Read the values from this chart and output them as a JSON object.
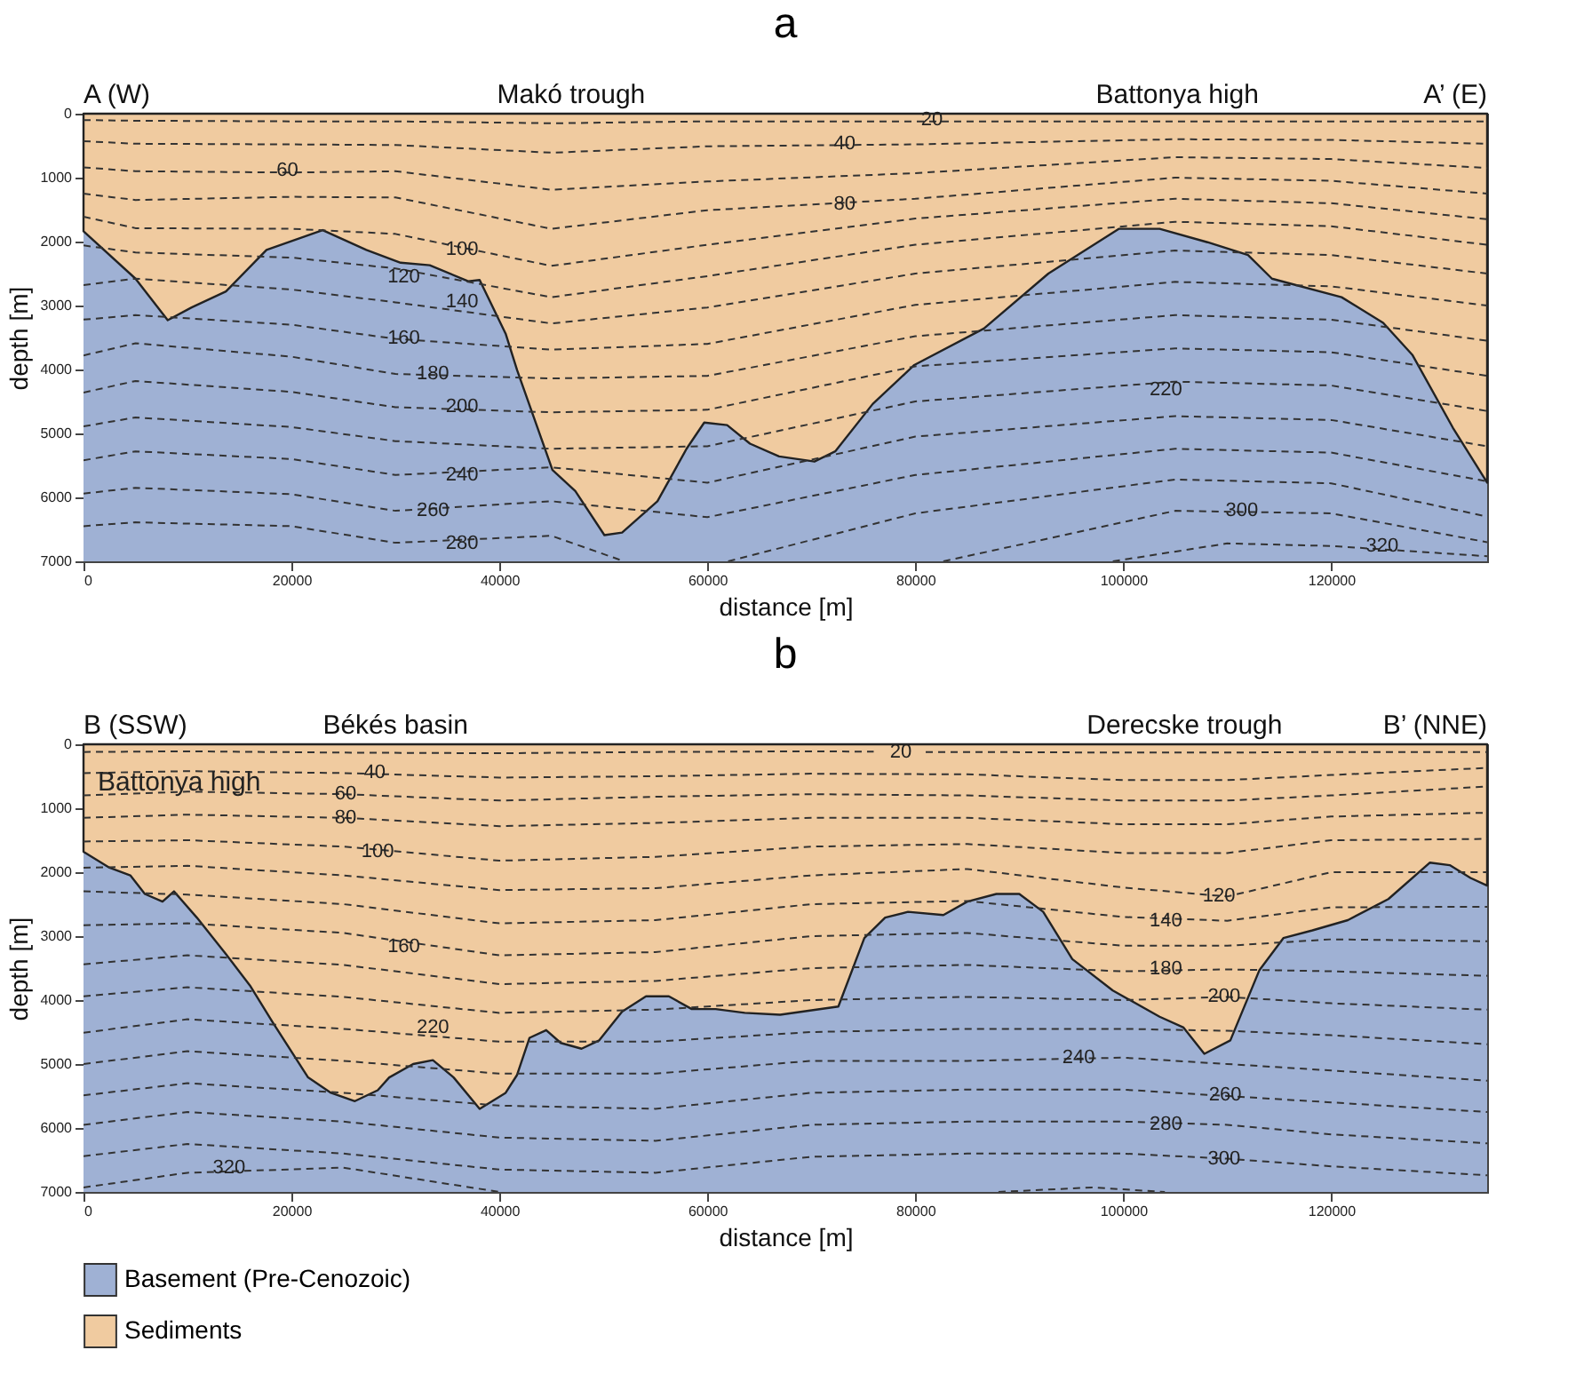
{
  "chart_data": [
    {
      "type": "area",
      "title": "a",
      "xlabel": "distance [m]",
      "ylabel": "depth [m]",
      "xlim": [
        0,
        135000
      ],
      "ylim": [
        7000,
        0
      ],
      "xticks": [
        0,
        20000,
        40000,
        60000,
        80000,
        100000,
        120000
      ],
      "yticks": [
        0,
        1000,
        2000,
        3000,
        4000,
        5000,
        6000,
        7000
      ],
      "x": [
        0,
        5000,
        20000,
        30000,
        45000,
        60000,
        80000,
        105000,
        120000,
        135000
      ],
      "series": [
        {
          "color": "#f0cba0",
          "x": [
            0,
            5000,
            8100,
            10400,
            13700,
            17600,
            23000,
            27200,
            30500,
            33300,
            37000,
            38100,
            40600,
            41700,
            45100,
            47300,
            50100,
            51800,
            55200,
            58000,
            59700,
            61900,
            64100,
            66900,
            70300,
            72300,
            75900,
            79900,
            86600,
            92800,
            99600,
            103500,
            108100,
            112000,
            114300,
            121000,
            125000,
            127800,
            131700,
            135000
          ],
          "values": [
            1840,
            2580,
            3230,
            3030,
            2780,
            2130,
            1820,
            2130,
            2330,
            2370,
            2620,
            2600,
            3440,
            4010,
            5570,
            5900,
            6590,
            6550,
            6060,
            5240,
            4830,
            4870,
            5160,
            5360,
            5440,
            5280,
            4540,
            3930,
            3360,
            2500,
            1800,
            1800,
            2010,
            2210,
            2580,
            2870,
            3270,
            3770,
            4910,
            5770
          ]
        },
        {
          "type": "line",
          "color": "#333333",
          "values": [
            100,
            110,
            120,
            120,
            150,
            120,
            120,
            120,
            120,
            120
          ]
        },
        {
          "type": "line",
          "color": "#333333",
          "values": [
            430,
            470,
            480,
            490,
            610,
            510,
            480,
            400,
            410,
            470
          ]
        },
        {
          "type": "line",
          "color": "#333333",
          "values": [
            840,
            900,
            920,
            900,
            1190,
            1060,
            930,
            680,
            710,
            850
          ]
        },
        {
          "type": "line",
          "color": "#333333",
          "values": [
            1250,
            1350,
            1300,
            1310,
            1800,
            1510,
            1330,
            1000,
            1050,
            1250
          ]
        },
        {
          "type": "line",
          "color": "#333333",
          "values": [
            1610,
            1790,
            1800,
            1880,
            2380,
            2050,
            1640,
            1330,
            1400,
            1650
          ]
        },
        {
          "type": "line",
          "color": "#333333",
          "values": [
            2060,
            2170,
            2250,
            2420,
            2870,
            2540,
            2050,
            1690,
            1760,
            2050
          ]
        },
        {
          "type": "line",
          "color": "#333333",
          "values": [
            2680,
            2580,
            2750,
            2950,
            3280,
            3030,
            2500,
            2140,
            2210,
            2500
          ]
        },
        {
          "type": "line",
          "color": "#333333",
          "values": [
            3220,
            3150,
            3300,
            3520,
            3690,
            3600,
            2990,
            2630,
            2700,
            3000
          ]
        },
        {
          "type": "line",
          "color": "#333333",
          "values": [
            3780,
            3590,
            3800,
            4070,
            4140,
            4100,
            3480,
            3150,
            3220,
            3550
          ]
        },
        {
          "type": "line",
          "color": "#333333",
          "values": [
            4360,
            4180,
            4350,
            4590,
            4670,
            4630,
            3950,
            3670,
            3730,
            4100
          ]
        },
        {
          "type": "line",
          "color": "#333333",
          "values": [
            4890,
            4750,
            4900,
            5120,
            5240,
            5200,
            4500,
            4190,
            4250,
            4650
          ]
        },
        {
          "type": "line",
          "color": "#333333",
          "values": [
            5420,
            5280,
            5400,
            5650,
            5530,
            5770,
            5050,
            4730,
            4790,
            5200
          ]
        },
        {
          "type": "line",
          "color": "#333333",
          "values": [
            5940,
            5850,
            5950,
            6210,
            6060,
            6310,
            5650,
            5240,
            5300,
            5750
          ]
        },
        {
          "type": "line",
          "color": "#333333",
          "x": [
            0,
            5000,
            20000,
            30000,
            45000,
            52000
          ],
          "values": [
            6450,
            6390,
            6450,
            6710,
            6600,
            7000
          ]
        },
        {
          "type": "line",
          "color": "#333333",
          "x": [
            62000,
            80000,
            105000,
            120000,
            135000
          ],
          "values": [
            7000,
            6250,
            5720,
            5780,
            6300
          ]
        },
        {
          "type": "line",
          "color": "#333333",
          "x": [
            82700,
            105000,
            120000,
            135000
          ],
          "values": [
            7000,
            6210,
            6250,
            6700
          ]
        },
        {
          "type": "line",
          "color": "#333333",
          "x": [
            99000,
            110000,
            120000,
            135000
          ],
          "values": [
            7000,
            6720,
            6760,
            6920
          ]
        }
      ],
      "bands": [
        {
          "axis": "y",
          "from": 0,
          "to": 7000,
          "color": "#9fb1d4"
        }
      ],
      "line_style": "dashed",
      "grid": false,
      "legend": false,
      "annotations": [
        {
          "text": "A (W)",
          "x": 0,
          "y": 0
        },
        {
          "text": "Makó trough",
          "x": 46900,
          "y": 0
        },
        {
          "text": "Battonya high",
          "x": 105200,
          "y": 0
        },
        {
          "text": "A’ (E)",
          "x": 135000,
          "y": 0
        },
        {
          "text": "20",
          "x": 81600,
          "y": 100
        },
        {
          "text": "40",
          "x": 73200,
          "y": 470
        },
        {
          "text": "60",
          "x": 19600,
          "y": 885
        },
        {
          "text": "80",
          "x": 73200,
          "y": 1410
        },
        {
          "text": "100",
          "x": 36400,
          "y": 2130
        },
        {
          "text": "120",
          "x": 30800,
          "y": 2560
        },
        {
          "text": "140",
          "x": 36400,
          "y": 2950
        },
        {
          "text": "160",
          "x": 30800,
          "y": 3520
        },
        {
          "text": "180",
          "x": 33600,
          "y": 4070
        },
        {
          "text": "200",
          "x": 36400,
          "y": 4590
        },
        {
          "text": "220",
          "x": 104100,
          "y": 4320
        },
        {
          "text": "240",
          "x": 36400,
          "y": 5650
        },
        {
          "text": "260",
          "x": 33600,
          "y": 6210
        },
        {
          "text": "280",
          "x": 36400,
          "y": 6720
        },
        {
          "text": "300",
          "x": 111400,
          "y": 6210
        },
        {
          "text": "320",
          "x": 124900,
          "y": 6760
        }
      ]
    },
    {
      "type": "area",
      "title": "b",
      "xlabel": "distance [m]",
      "ylabel": "depth [m]",
      "xlim": [
        0,
        135000
      ],
      "ylim": [
        7000,
        0
      ],
      "xticks": [
        0,
        20000,
        40000,
        60000,
        80000,
        100000,
        120000
      ],
      "yticks": [
        0,
        1000,
        2000,
        3000,
        4000,
        5000,
        6000,
        7000
      ],
      "x": [
        0,
        10000,
        25000,
        40000,
        55000,
        70000,
        85000,
        100000,
        110000,
        120000,
        135000
      ],
      "series": [
        {
          "name": "Sediments",
          "color": "#f0cba0",
          "x": [
            0,
            2500,
            4500,
            5900,
            7600,
            8700,
            10900,
            13700,
            16000,
            18200,
            21600,
            23800,
            26100,
            28300,
            29400,
            31700,
            33600,
            35600,
            38100,
            40600,
            41700,
            42900,
            44500,
            45900,
            47900,
            49600,
            51800,
            54100,
            56300,
            58500,
            60800,
            63600,
            67000,
            72600,
            75100,
            77100,
            79300,
            82700,
            85000,
            87800,
            90000,
            92300,
            95100,
            99000,
            103500,
            105800,
            107800,
            110300,
            113100,
            115400,
            118200,
            121600,
            125500,
            129500,
            131400,
            133400,
            135000
          ],
          "values": [
            1680,
            1930,
            2050,
            2340,
            2460,
            2300,
            2710,
            3280,
            3770,
            4350,
            5210,
            5450,
            5580,
            5410,
            5210,
            5000,
            4940,
            5210,
            5700,
            5450,
            5170,
            4590,
            4470,
            4670,
            4760,
            4630,
            4180,
            3940,
            3940,
            4140,
            4140,
            4200,
            4230,
            4100,
            3030,
            2710,
            2620,
            2670,
            2460,
            2340,
            2340,
            2620,
            3360,
            3850,
            4260,
            4430,
            4840,
            4630,
            3530,
            3030,
            2910,
            2750,
            2420,
            1850,
            1890,
            2090,
            2210
          ]
        },
        {
          "type": "line",
          "color": "#333333",
          "x": [
            0,
            10000,
            25000,
            40000,
            55000,
            70000,
            76000
          ],
          "values": [
            120,
            110,
            130,
            140,
            120,
            110,
            115
          ]
        },
        {
          "type": "line",
          "color": "#333333",
          "x": [
            81000,
            85000,
            100000,
            110000,
            120000,
            135000
          ],
          "values": [
            120,
            120,
            130,
            130,
            120,
            120
          ]
        },
        {
          "type": "line",
          "color": "#333333",
          "values": [
            450,
            420,
            450,
            520,
            500,
            460,
            470,
            560,
            560,
            480,
            370
          ]
        },
        {
          "type": "line",
          "color": "#333333",
          "values": [
            800,
            740,
            780,
            880,
            820,
            780,
            800,
            880,
            880,
            800,
            660
          ]
        },
        {
          "type": "line",
          "color": "#333333",
          "values": [
            1150,
            1100,
            1150,
            1280,
            1230,
            1150,
            1150,
            1250,
            1250,
            1130,
            1070
          ]
        },
        {
          "type": "line",
          "color": "#333333",
          "values": [
            1520,
            1500,
            1600,
            1820,
            1760,
            1600,
            1560,
            1700,
            1700,
            1500,
            1480
          ]
        },
        {
          "type": "line",
          "color": "#333333",
          "values": [
            1930,
            1900,
            2050,
            2280,
            2250,
            2050,
            1950,
            2240,
            2380,
            2000,
            2000
          ]
        },
        {
          "type": "line",
          "color": "#333333",
          "values": [
            2300,
            2350,
            2500,
            2800,
            2750,
            2500,
            2450,
            2700,
            2760,
            2550,
            2540
          ]
        },
        {
          "type": "line",
          "color": "#333333",
          "values": [
            2830,
            2800,
            2950,
            3300,
            3250,
            3000,
            2950,
            3150,
            3150,
            3050,
            3080
          ]
        },
        {
          "type": "line",
          "color": "#333333",
          "values": [
            3440,
            3300,
            3450,
            3750,
            3700,
            3500,
            3450,
            3550,
            3520,
            3550,
            3620
          ]
        },
        {
          "type": "line",
          "color": "#333333",
          "values": [
            3940,
            3800,
            3950,
            4200,
            4150,
            4000,
            3950,
            4000,
            3950,
            4050,
            4150
          ]
        },
        {
          "type": "line",
          "color": "#333333",
          "values": [
            4510,
            4300,
            4450,
            4650,
            4650,
            4500,
            4450,
            4450,
            4480,
            4550,
            4690
          ]
        },
        {
          "type": "line",
          "color": "#333333",
          "values": [
            5000,
            4800,
            4950,
            5150,
            5150,
            4950,
            4950,
            4900,
            5000,
            5100,
            5260
          ]
        },
        {
          "type": "line",
          "color": "#333333",
          "values": [
            5490,
            5300,
            5450,
            5650,
            5700,
            5450,
            5400,
            5400,
            5500,
            5600,
            5750
          ]
        },
        {
          "type": "line",
          "color": "#333333",
          "values": [
            5950,
            5750,
            5900,
            6150,
            6200,
            5950,
            5900,
            5900,
            5950,
            6100,
            6240
          ]
        },
        {
          "type": "line",
          "color": "#333333",
          "values": [
            6440,
            6250,
            6400,
            6650,
            6700,
            6450,
            6400,
            6400,
            6480,
            6600,
            6740
          ]
        },
        {
          "type": "line",
          "color": "#333333",
          "x": [
            0,
            10000,
            25000,
            40000
          ],
          "values": [
            6930,
            6700,
            6620,
            7000
          ]
        },
        {
          "type": "line",
          "color": "#333333",
          "x": [
            88000,
            97000,
            104000
          ],
          "values": [
            7000,
            6930,
            7000
          ]
        }
      ],
      "bands": [
        {
          "axis": "y",
          "from": 0,
          "to": 7000,
          "label": "Basement (Pre-Cenozoic)",
          "color": "#9fb1d4"
        }
      ],
      "line_style": "dashed",
      "grid": false,
      "legend": "bottom left",
      "annotations": [
        {
          "text": "B (SSW)",
          "x": 0,
          "y": 0
        },
        {
          "text": "Békés basin",
          "x": 30000,
          "y": 0
        },
        {
          "text": "Derecske trough",
          "x": 105900,
          "y": 0
        },
        {
          "text": "B’ (NNE)",
          "x": 135000,
          "y": 0
        },
        "Battonya high",
        {
          "text": "20",
          "x": 78600,
          "y": 120
        },
        {
          "text": "40",
          "x": 28000,
          "y": 450
        },
        {
          "text": "60",
          "x": 25200,
          "y": 780
        },
        {
          "text": "80",
          "x": 25200,
          "y": 1150
        },
        {
          "text": "100",
          "x": 28300,
          "y": 1680
        },
        {
          "text": "120",
          "x": 109200,
          "y": 2380
        },
        {
          "text": "140",
          "x": 104100,
          "y": 2760
        },
        {
          "text": "160",
          "x": 30800,
          "y": 3160
        },
        {
          "text": "180",
          "x": 104100,
          "y": 3510
        },
        {
          "text": "200",
          "x": 109700,
          "y": 3950
        },
        {
          "text": "220",
          "x": 33600,
          "y": 4430
        },
        {
          "text": "240",
          "x": 95700,
          "y": 4900
        },
        {
          "text": "260",
          "x": 109800,
          "y": 5480
        },
        {
          "text": "280",
          "x": 104100,
          "y": 5950
        },
        {
          "text": "300",
          "x": 109700,
          "y": 6480
        },
        {
          "text": "320",
          "x": 14000,
          "y": 6630
        }
      ]
    }
  ]
}
